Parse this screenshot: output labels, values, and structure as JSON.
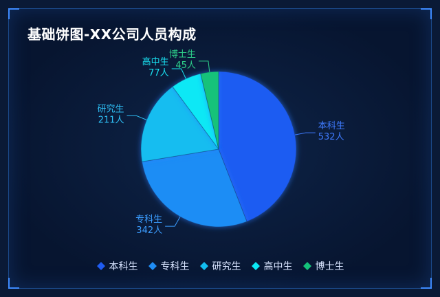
{
  "chart_data": {
    "type": "pie",
    "title": "基础饼图-XX公司人员构成",
    "unit": "人",
    "categories": [
      "本科生",
      "专科生",
      "研究生",
      "高中生",
      "博士生"
    ],
    "values": [
      532,
      342,
      211,
      77,
      45
    ],
    "value_labels": [
      "532人",
      "342人",
      "211人",
      "77人",
      "45人"
    ],
    "colors": [
      "#1f5cf2",
      "#1f8df5",
      "#12bdf0",
      "#0ae8f5",
      "#14c27a"
    ],
    "label_colors": [
      "#3f7bff",
      "#3b9dff",
      "#2fc1f7",
      "#19e2f2",
      "#2ed28b"
    ],
    "legend_position": "bottom-center"
  }
}
